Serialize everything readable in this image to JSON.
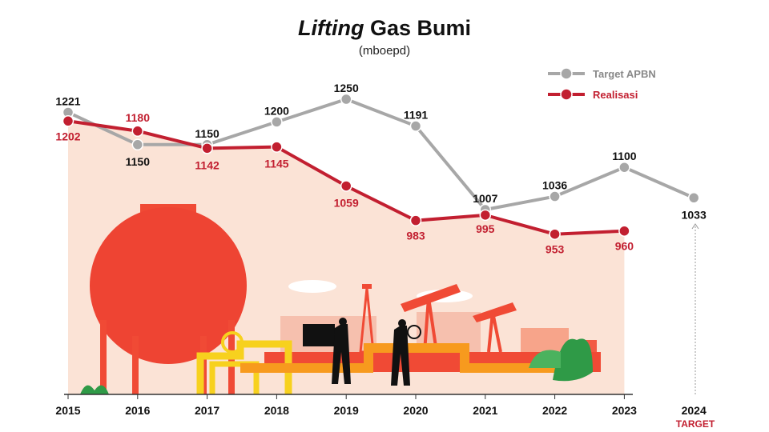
{
  "chart_data": {
    "type": "line",
    "title_italic": "Lifting",
    "title_rest": "Gas Bumi",
    "subtitle": "(mboepd)",
    "categories": [
      "2015",
      "2016",
      "2017",
      "2018",
      "2019",
      "2020",
      "2021",
      "2022",
      "2023",
      "2024"
    ],
    "target_note": "TARGET",
    "grid": false,
    "legend_position": "top-right",
    "series": [
      {
        "name": "Target APBN",
        "color": "#a7a7a7",
        "values": [
          1221,
          1150,
          1150,
          1200,
          1250,
          1191,
          1007,
          1036,
          1100,
          1033
        ]
      },
      {
        "name": "Realisasi",
        "color": "#c21f30",
        "values": [
          1202,
          1180,
          1142,
          1145,
          1059,
          983,
          995,
          953,
          960,
          null
        ]
      }
    ],
    "area_fill_color": "#fbe3d6"
  }
}
